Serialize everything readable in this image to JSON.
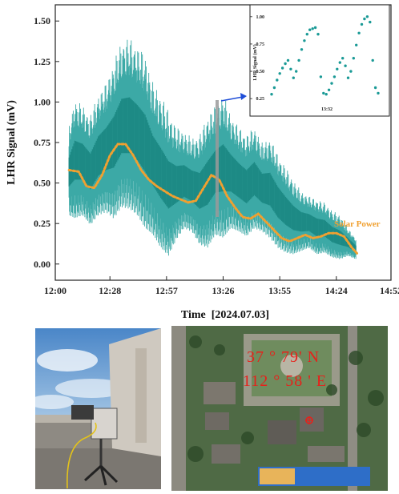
{
  "chart_data": {
    "type": "line",
    "title": "",
    "xlabel": "Time  [2024.07.03]",
    "ylabel": "LHR Signal (mV)",
    "x_ticks": [
      "12:00",
      "12:28",
      "12:57",
      "13:26",
      "13:55",
      "14:24",
      "14:52"
    ],
    "x_tick_minutes": [
      0,
      28,
      57,
      86,
      115,
      144,
      172
    ],
    "xlim_minutes": [
      0,
      172
    ],
    "y_ticks": [
      "0.00",
      "0.25",
      "0.50",
      "0.75",
      "1.00",
      "1.25",
      "1.50"
    ],
    "y_tick_values": [
      0,
      0.25,
      0.5,
      0.75,
      1.0,
      1.25,
      1.5
    ],
    "ylim": [
      -0.1,
      1.6
    ],
    "grid": false,
    "series": [
      {
        "type": "band",
        "color": "#1a9a96",
        "x_minutes": [
          7,
          10,
          14,
          18,
          22,
          26,
          30,
          34,
          38,
          42,
          46,
          50,
          54,
          58,
          62,
          66,
          70,
          74,
          78,
          82,
          86,
          90,
          94,
          98,
          102,
          106,
          110,
          114,
          118,
          122,
          126,
          130,
          134,
          138,
          142,
          146,
          150,
          154
        ],
        "upper": [
          0.85,
          1.02,
          0.98,
          0.92,
          1.05,
          1.12,
          1.25,
          1.38,
          1.4,
          1.35,
          1.3,
          1.12,
          1.05,
          0.95,
          0.85,
          0.82,
          0.78,
          0.8,
          0.92,
          0.98,
          1.05,
          0.92,
          0.85,
          0.8,
          0.85,
          0.75,
          0.78,
          0.68,
          0.6,
          0.52,
          0.45,
          0.42,
          0.4,
          0.38,
          0.33,
          0.3,
          0.22,
          0.16
        ],
        "lower": [
          0.3,
          0.28,
          0.3,
          0.24,
          0.3,
          0.32,
          0.28,
          0.35,
          0.34,
          0.3,
          0.22,
          0.18,
          0.1,
          0.05,
          0.15,
          0.22,
          0.2,
          0.12,
          0.1,
          0.18,
          0.16,
          0.22,
          0.2,
          0.17,
          0.22,
          0.2,
          0.16,
          0.1,
          0.07,
          0.06,
          0.08,
          0.1,
          0.06,
          0.07,
          0.04,
          0.03,
          0.05,
          0.03
        ]
      },
      {
        "name": "Solar Power",
        "type": "line",
        "style": "dotted",
        "color": "#f0a030",
        "x_minutes": [
          7,
          12,
          16,
          20,
          24,
          28,
          32,
          36,
          40,
          44,
          48,
          52,
          56,
          60,
          64,
          68,
          72,
          76,
          80,
          84,
          88,
          92,
          96,
          100,
          104,
          108,
          112,
          116,
          120,
          124,
          128,
          132,
          136,
          140,
          144,
          148,
          152,
          155
        ],
        "values": [
          0.58,
          0.57,
          0.48,
          0.47,
          0.55,
          0.67,
          0.74,
          0.74,
          0.67,
          0.58,
          0.52,
          0.48,
          0.45,
          0.42,
          0.4,
          0.38,
          0.39,
          0.47,
          0.55,
          0.52,
          0.42,
          0.35,
          0.29,
          0.28,
          0.31,
          0.26,
          0.21,
          0.16,
          0.14,
          0.16,
          0.18,
          0.16,
          0.17,
          0.19,
          0.19,
          0.17,
          0.1,
          0.06
        ]
      }
    ],
    "inset": {
      "type": "scatter",
      "ylabel": "LHR Signal (mV)",
      "x_tick": "13:32",
      "y_ticks": [
        "0.25",
        "0.50",
        "0.75",
        "1.00"
      ],
      "ylim": [
        0.2,
        1.05
      ],
      "values": [
        0.29,
        0.35,
        0.42,
        0.48,
        0.53,
        0.57,
        0.6,
        0.52,
        0.44,
        0.5,
        0.6,
        0.7,
        0.78,
        0.84,
        0.88,
        0.89,
        0.9,
        0.84,
        0.45,
        0.3,
        0.29,
        0.33,
        0.39,
        0.45,
        0.52,
        0.58,
        0.62,
        0.55,
        0.44,
        0.5,
        0.62,
        0.74,
        0.85,
        0.93,
        0.98,
        1.0,
        0.95,
        0.6,
        0.35,
        0.3
      ]
    },
    "colors": {
      "signal": "#1a9a96",
      "solar": "#f0a030",
      "arrow": "#1f4ed8"
    }
  },
  "map": {
    "line1": "37 ° 79' N",
    "line2": "112 ° 58 ' E",
    "color": "#e8201a"
  },
  "photos": {
    "device": "outdoor LHR detector on rooftop",
    "map": "satellite map of campus"
  }
}
